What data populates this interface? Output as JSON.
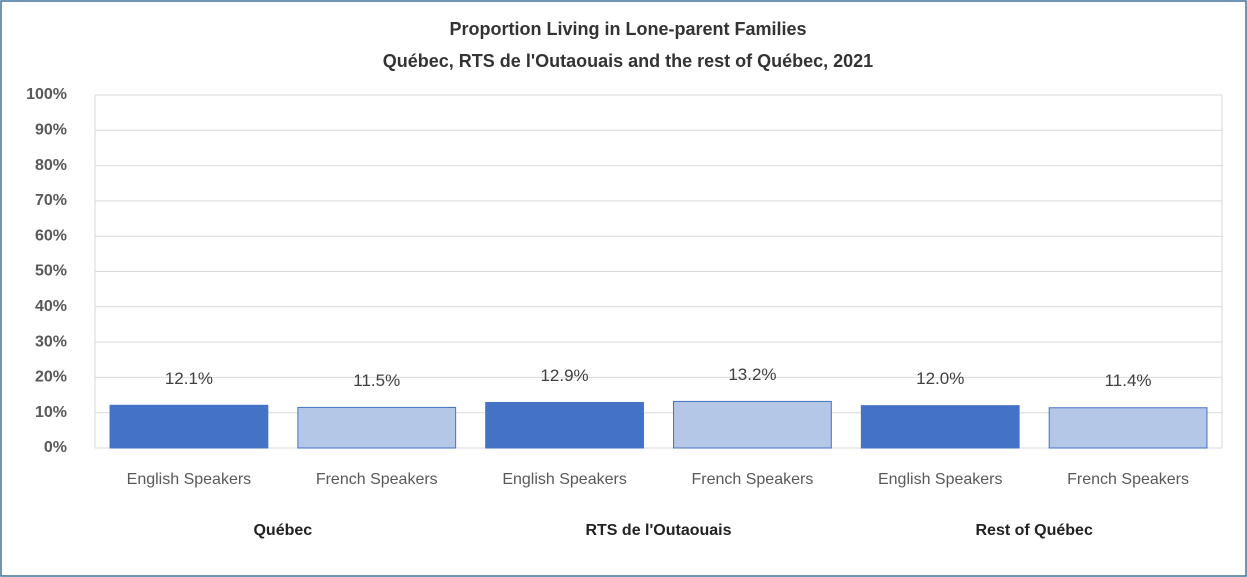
{
  "chart_data": {
    "type": "bar",
    "title": "Proportion Living in Lone-parent Families",
    "subtitle": "Québec, RTS de l'Outaouais and the rest of Québec, 2021",
    "categories": [
      "English Speakers",
      "French Speakers",
      "English Speakers",
      "French Speakers",
      "English Speakers",
      "French Speakers"
    ],
    "groups": [
      "Québec",
      "RTS de l'Outaouais",
      "Rest of Québec"
    ],
    "values": [
      12.1,
      11.5,
      12.9,
      13.2,
      12.0,
      11.4
    ],
    "value_labels": [
      "12.1%",
      "11.5%",
      "12.9%",
      "13.2%",
      "12.0%",
      "11.4%"
    ],
    "colors": [
      "#4472c4",
      "#b4c7e7",
      "#4472c4",
      "#b4c7e7",
      "#4472c4",
      "#b4c7e7"
    ],
    "ylim": [
      0,
      100
    ],
    "yticks": [
      {
        "value": 0,
        "label": "0%"
      },
      {
        "value": 10,
        "label": "10%"
      },
      {
        "value": 20,
        "label": "20%"
      },
      {
        "value": 30,
        "label": "30%"
      },
      {
        "value": 40,
        "label": "40%"
      },
      {
        "value": 50,
        "label": "50%"
      },
      {
        "value": 60,
        "label": "60%"
      },
      {
        "value": 70,
        "label": "70%"
      },
      {
        "value": 80,
        "label": "80%"
      },
      {
        "value": 90,
        "label": "90%"
      },
      {
        "value": 100,
        "label": "100%"
      }
    ],
    "grid": true
  }
}
